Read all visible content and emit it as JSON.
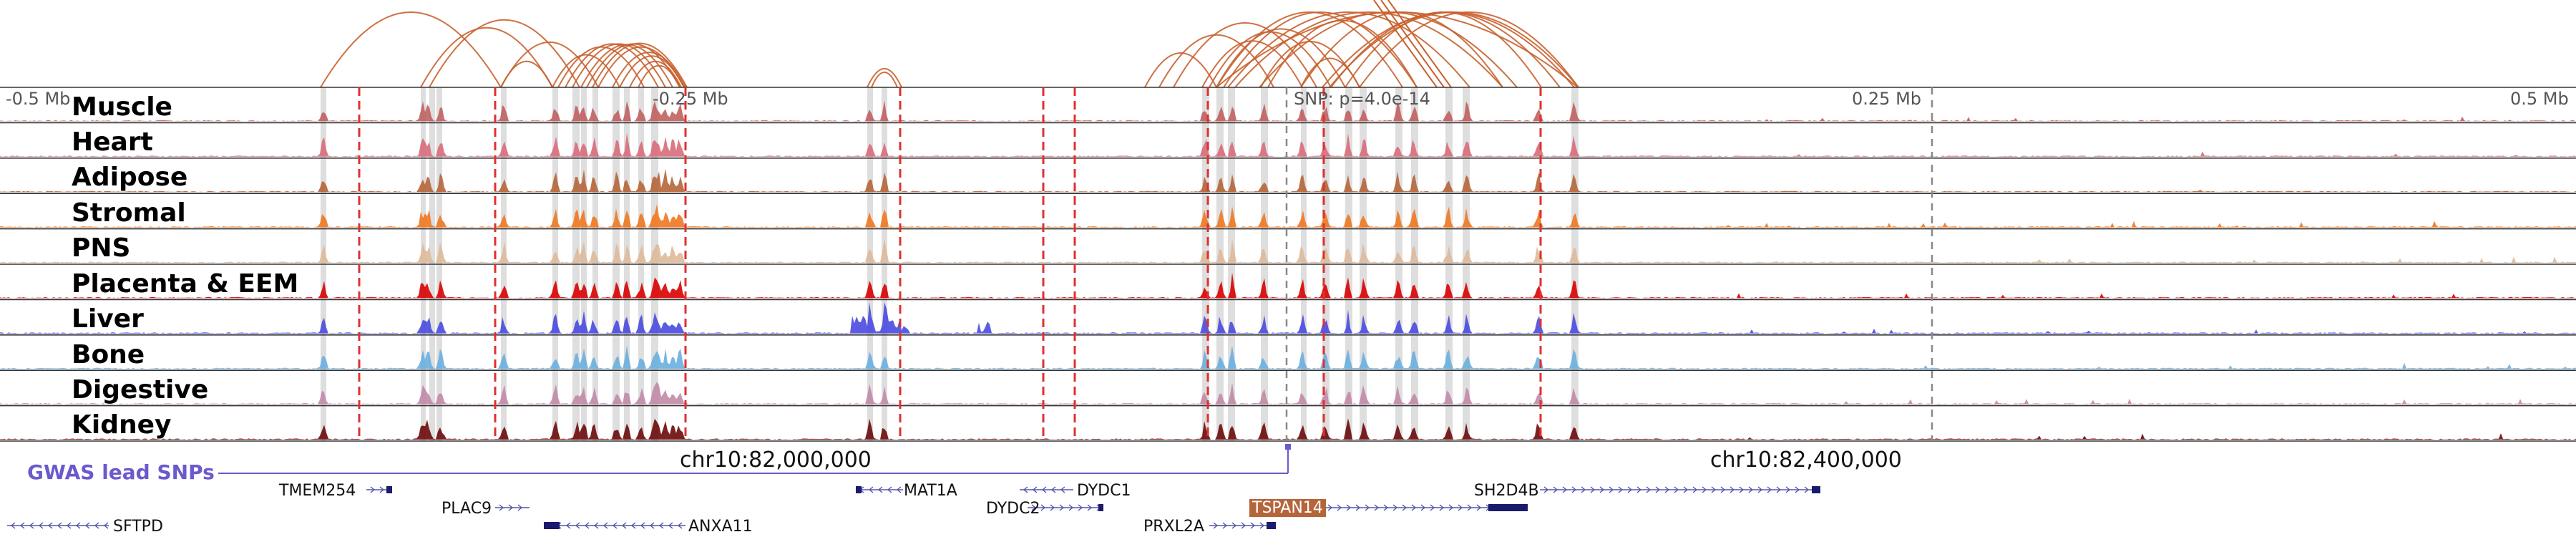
{
  "scale_labels": [
    "-0.5 Mb",
    "-0.25 Mb",
    "SNP: p=4.0e-14",
    "0.25 Mb",
    "0.5 Mb"
  ],
  "tracks": [
    {
      "label": "Muscle",
      "color": "#c06060"
    },
    {
      "label": "Heart",
      "color": "#d96b7a"
    },
    {
      "label": "Adipose",
      "color": "#b5653a"
    },
    {
      "label": "Stromal",
      "color": "#f07820"
    },
    {
      "label": "PNS",
      "color": "#dfb999"
    },
    {
      "label": "Placenta & EEM",
      "color": "#d90000"
    },
    {
      "label": "Liver",
      "color": "#4a4ae0"
    },
    {
      "label": "Bone",
      "color": "#6aafe0"
    },
    {
      "label": "Digestive",
      "color": "#c28aa8"
    },
    {
      "label": "Kidney",
      "color": "#6b0a0a"
    }
  ],
  "coordinates": [
    "chr10:82,000,000",
    "chr10:82,400,000"
  ],
  "gwas": {
    "label": "GWAS lead SNPs",
    "color": "#6a5acd"
  },
  "genes": [
    {
      "name": "TMEM254",
      "strand": "+"
    },
    {
      "name": "MAT1A",
      "strand": "-"
    },
    {
      "name": "DYDC1",
      "strand": "-"
    },
    {
      "name": "SH2D4B",
      "strand": "+"
    },
    {
      "name": "PLAC9",
      "strand": "+"
    },
    {
      "name": "DYDC2",
      "strand": "+"
    },
    {
      "name": "TSPAN14",
      "strand": "+",
      "highlighted": true
    },
    {
      "name": "SFTPD",
      "strand": "-"
    },
    {
      "name": "ANXA11",
      "strand": "-"
    },
    {
      "name": "PRXL2A",
      "strand": "+"
    }
  ],
  "colors": {
    "link": "#c8622f",
    "peak_highlight": "#d8d8d8",
    "boundary": "#e03030",
    "gene": "#1b1b6e",
    "strand_arrow": "#5555aa"
  }
}
